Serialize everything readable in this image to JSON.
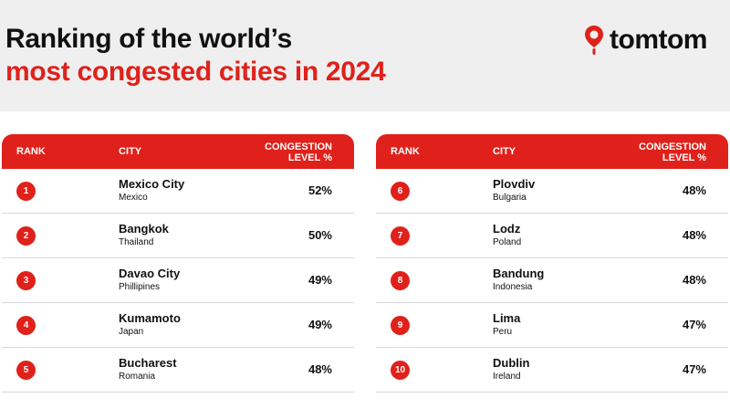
{
  "title": {
    "line1": "Ranking of the world’s",
    "line2": "most congested cities in 2024"
  },
  "brand": {
    "logo_text": "tomtom",
    "icon": "location-pin-icon",
    "accent": "#e0211b"
  },
  "table_headers": {
    "rank": "RANK",
    "city": "CITY",
    "level_line1": "CONGESTION",
    "level_line2": "LEVEL %"
  },
  "left_rows": [
    {
      "rank": "1",
      "city": "Mexico City",
      "country": "Mexico",
      "level": "52%"
    },
    {
      "rank": "2",
      "city": "Bangkok",
      "country": "Thailand",
      "level": "50%"
    },
    {
      "rank": "3",
      "city": "Davao City",
      "country": "Phillipines",
      "level": "49%"
    },
    {
      "rank": "4",
      "city": "Kumamoto",
      "country": "Japan",
      "level": "49%"
    },
    {
      "rank": "5",
      "city": "Bucharest",
      "country": "Romania",
      "level": "48%"
    }
  ],
  "right_rows": [
    {
      "rank": "6",
      "city": "Plovdiv",
      "country": "Bulgaria",
      "level": "48%"
    },
    {
      "rank": "7",
      "city": "Lodz",
      "country": "Poland",
      "level": "48%"
    },
    {
      "rank": "8",
      "city": "Bandung",
      "country": "Indonesia",
      "level": "48%"
    },
    {
      "rank": "9",
      "city": "Lima",
      "country": "Peru",
      "level": "47%"
    },
    {
      "rank": "10",
      "city": "Dublin",
      "country": "Ireland",
      "level": "47%"
    }
  ]
}
